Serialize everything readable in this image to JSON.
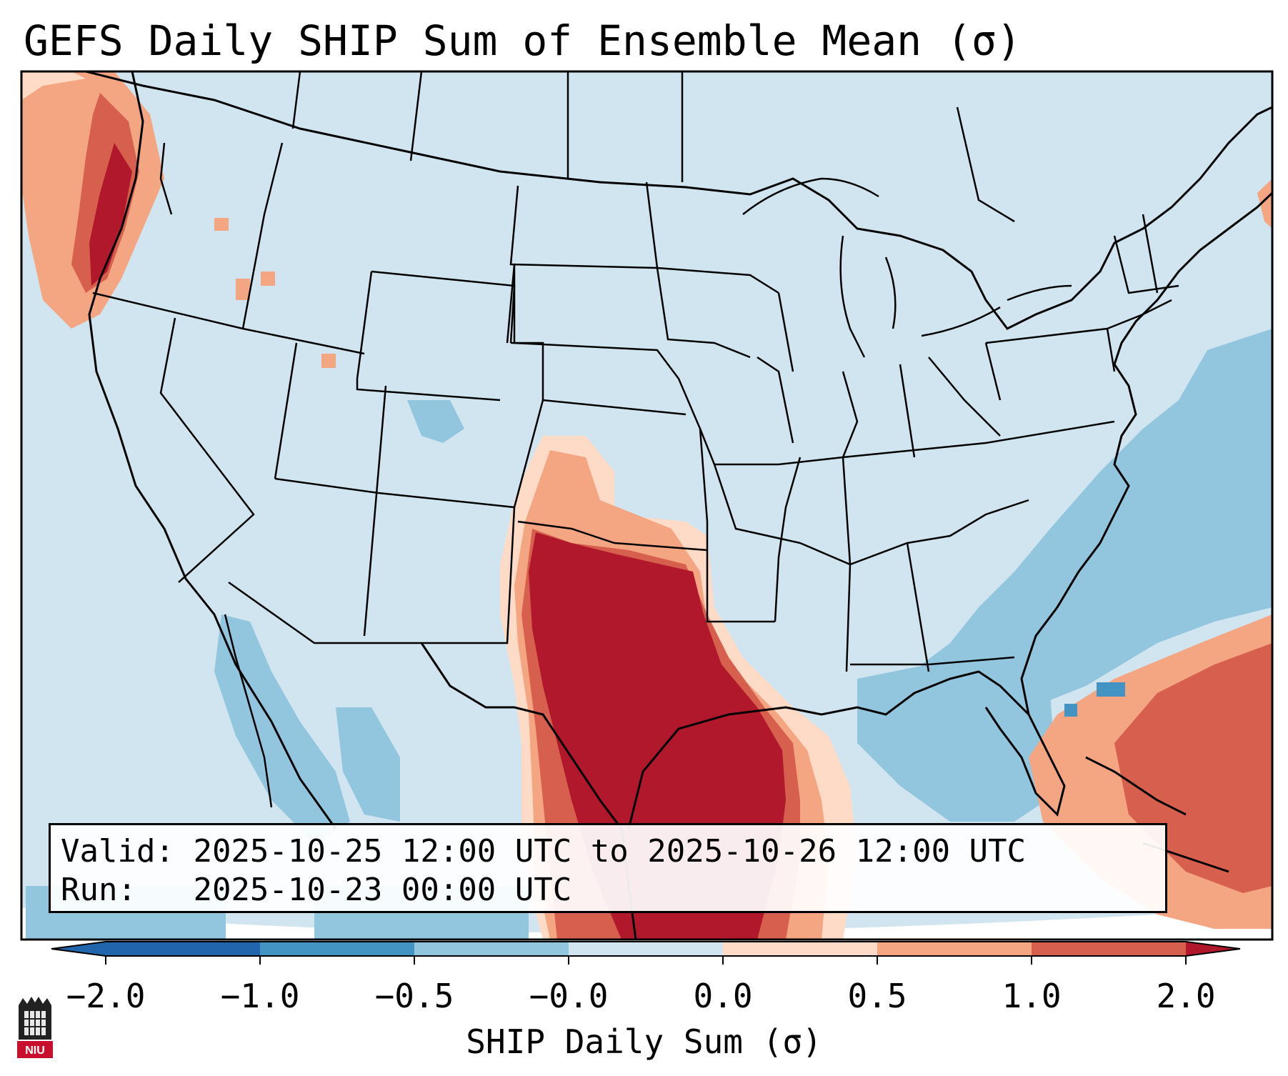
{
  "title": "GEFS Daily SHIP Sum of Ensemble Mean (σ)",
  "valid_label": "Valid:",
  "valid_value": "2025-10-25 12:00 UTC to 2025-10-26 12:00 UTC",
  "run_label": "Run:",
  "run_value": "2025-10-23 00:00 UTC",
  "colorbar": {
    "label": "SHIP Daily Sum (σ)",
    "ticks": [
      "−2.0",
      "−1.0",
      "−0.5",
      "−0.0",
      "0.0",
      "0.5",
      "1.0",
      "2.0"
    ],
    "colors": [
      "#2166ac",
      "#4393c3",
      "#92c5de",
      "#d1e5f0",
      "#fddbc7",
      "#f4a582",
      "#d6604d",
      "#b2182b"
    ],
    "extend": "both"
  },
  "map": {
    "region": "Contiguous United States",
    "field": "SHIP daily sum anomaly",
    "background_color": "#d1e5f0"
  },
  "logo_text": "NIU"
}
